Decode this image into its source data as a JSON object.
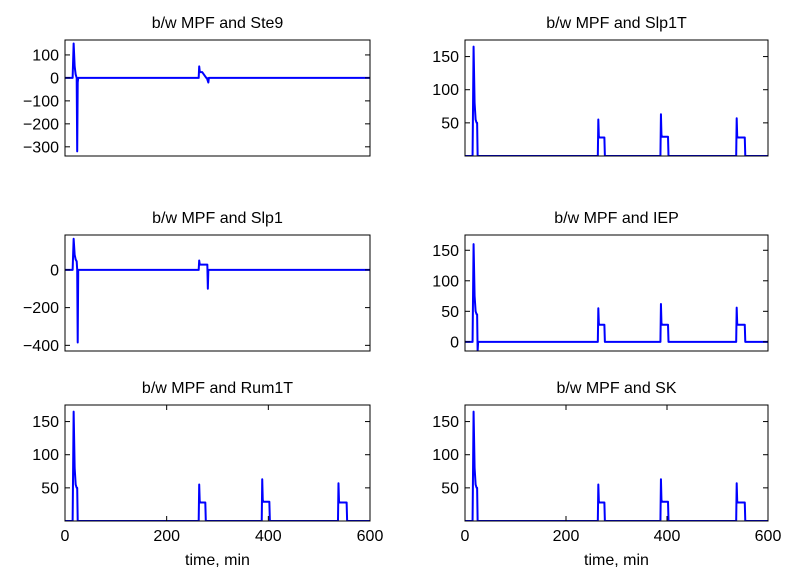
{
  "figure": {
    "background": "#ffffff"
  },
  "chart_data": [
    {
      "type": "line",
      "title": "b/w MPF and Ste9",
      "xlabel": "",
      "ylabel": "",
      "xlim": [
        0,
        600
      ],
      "ylim": [
        -340,
        165
      ],
      "xticks": [],
      "yticks": [
        100,
        0,
        -100,
        -200,
        -300
      ],
      "ytick_labels": [
        "100",
        "0",
        "−100",
        "−200",
        "−300"
      ],
      "grid": false,
      "series": [
        {
          "color": "#0000ff",
          "x": [
            0,
            15,
            17,
            19,
            21,
            23,
            24,
            25,
            26,
            27,
            28,
            263,
            264,
            265,
            266,
            268,
            270,
            278,
            279,
            282,
            283,
            284,
            285,
            286,
            287,
            600
          ],
          "y": [
            0,
            0,
            150,
            50,
            15,
            0,
            -320,
            -20,
            0,
            0,
            0,
            0,
            50,
            30,
            25,
            25,
            25,
            0,
            0,
            -20,
            0,
            0,
            0,
            0,
            0,
            0
          ]
        }
      ]
    },
    {
      "type": "line",
      "title": "b/w MPF and Slp1T",
      "xlabel": "",
      "ylabel": "",
      "xlim": [
        0,
        600
      ],
      "ylim": [
        0,
        175
      ],
      "xticks": [],
      "yticks": [
        150,
        100,
        50
      ],
      "ytick_labels": [
        "150",
        "100",
        "50"
      ],
      "grid": false,
      "series": [
        {
          "color": "#0000ff",
          "x": [
            0,
            15,
            17,
            19,
            21,
            23,
            24,
            25,
            26,
            27,
            263,
            264,
            265,
            266,
            268,
            276,
            277,
            278,
            387,
            388,
            389,
            390,
            392,
            402,
            403,
            404,
            537,
            538,
            539,
            540,
            542,
            554,
            555,
            556,
            600
          ],
          "y": [
            0,
            0,
            165,
            80,
            55,
            50,
            50,
            0,
            0,
            0,
            0,
            55,
            30,
            28,
            28,
            28,
            0,
            0,
            0,
            63,
            32,
            29,
            29,
            29,
            0,
            0,
            0,
            57,
            30,
            28,
            28,
            28,
            0,
            0,
            0
          ]
        }
      ]
    },
    {
      "type": "line",
      "title": "b/w MPF and Slp1",
      "xlabel": "",
      "ylabel": "",
      "xlim": [
        0,
        600
      ],
      "ylim": [
        -430,
        185
      ],
      "xticks": [],
      "yticks": [
        0,
        -200,
        -400
      ],
      "ytick_labels": [
        "0",
        "−200",
        "−400"
      ],
      "grid": false,
      "series": [
        {
          "color": "#0000ff",
          "x": [
            0,
            15,
            17,
            19,
            21,
            23,
            24,
            25,
            26,
            27,
            263,
            264,
            265,
            266,
            268,
            280,
            281,
            282,
            600
          ],
          "y": [
            0,
            0,
            165,
            80,
            55,
            45,
            0,
            -385,
            0,
            0,
            0,
            50,
            30,
            28,
            28,
            28,
            -100,
            0,
            0
          ]
        }
      ]
    },
    {
      "type": "line",
      "title": "b/w MPF and IEP",
      "xlabel": "",
      "ylabel": "",
      "xlim": [
        0,
        600
      ],
      "ylim": [
        -15,
        175
      ],
      "xticks": [],
      "yticks": [
        150,
        100,
        50,
        0
      ],
      "ytick_labels": [
        "150",
        "100",
        "50",
        "0"
      ],
      "grid": false,
      "series": [
        {
          "color": "#0000ff",
          "x": [
            0,
            15,
            17,
            19,
            21,
            23,
            24,
            25,
            26,
            27,
            263,
            264,
            265,
            266,
            268,
            276,
            277,
            278,
            387,
            388,
            389,
            390,
            392,
            402,
            403,
            404,
            537,
            538,
            539,
            540,
            542,
            554,
            555,
            556,
            600
          ],
          "y": [
            0,
            0,
            160,
            75,
            50,
            45,
            45,
            -15,
            0,
            0,
            0,
            55,
            30,
            28,
            28,
            28,
            0,
            0,
            0,
            62,
            31,
            28,
            28,
            28,
            0,
            0,
            0,
            56,
            30,
            28,
            28,
            28,
            0,
            0,
            0
          ]
        }
      ]
    },
    {
      "type": "line",
      "title": "b/w MPF and Rum1T",
      "xlabel": "time, min",
      "ylabel": "",
      "xlim": [
        0,
        600
      ],
      "ylim": [
        0,
        175
      ],
      "xticks": [
        0,
        200,
        400,
        600
      ],
      "xtick_labels": [
        "0",
        "200",
        "400",
        "600"
      ],
      "yticks": [
        150,
        100,
        50
      ],
      "ytick_labels": [
        "150",
        "100",
        "50"
      ],
      "grid": false,
      "series": [
        {
          "color": "#0000ff",
          "x": [
            0,
            15,
            17,
            19,
            21,
            23,
            24,
            25,
            26,
            27,
            263,
            264,
            265,
            266,
            268,
            276,
            277,
            278,
            387,
            388,
            389,
            390,
            392,
            402,
            403,
            404,
            537,
            538,
            539,
            540,
            542,
            554,
            555,
            556,
            600
          ],
          "y": [
            0,
            0,
            165,
            80,
            55,
            50,
            50,
            0,
            0,
            0,
            0,
            55,
            30,
            28,
            28,
            28,
            0,
            0,
            0,
            63,
            32,
            29,
            29,
            29,
            0,
            0,
            0,
            57,
            30,
            28,
            28,
            28,
            0,
            0,
            0
          ]
        }
      ]
    },
    {
      "type": "line",
      "title": "b/w MPF and SK",
      "xlabel": "time, min",
      "ylabel": "",
      "xlim": [
        0,
        600
      ],
      "ylim": [
        0,
        175
      ],
      "xticks": [
        0,
        200,
        400,
        600
      ],
      "xtick_labels": [
        "0",
        "200",
        "400",
        "600"
      ],
      "yticks": [
        150,
        100,
        50
      ],
      "ytick_labels": [
        "150",
        "100",
        "50"
      ],
      "grid": false,
      "series": [
        {
          "color": "#0000ff",
          "x": [
            0,
            15,
            17,
            19,
            21,
            23,
            24,
            25,
            26,
            27,
            263,
            264,
            265,
            266,
            268,
            276,
            277,
            278,
            387,
            388,
            389,
            390,
            392,
            402,
            403,
            404,
            537,
            538,
            539,
            540,
            542,
            554,
            555,
            556,
            600
          ],
          "y": [
            0,
            0,
            165,
            80,
            55,
            50,
            50,
            0,
            0,
            0,
            0,
            55,
            30,
            28,
            28,
            28,
            0,
            0,
            0,
            63,
            32,
            29,
            29,
            29,
            0,
            0,
            0,
            57,
            30,
            28,
            28,
            28,
            0,
            0,
            0
          ]
        }
      ]
    }
  ]
}
